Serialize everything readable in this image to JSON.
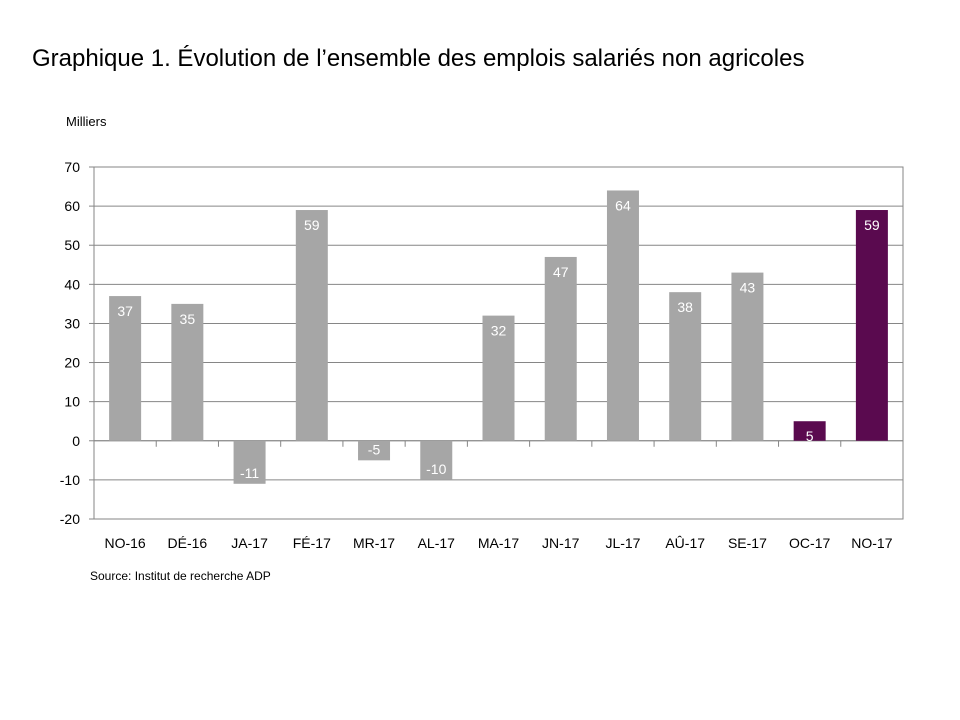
{
  "chart_data": {
    "type": "bar",
    "title": "Graphique 1. Évolution de l’ensemble des emplois salariés non agricoles",
    "ylabel": "Milliers",
    "xlabel": "",
    "source": "Source: Institut de recherche ADP",
    "categories": [
      "NO-16",
      "DÉ-16",
      "JA-17",
      "FÉ-17",
      "MR-17",
      "AL-17",
      "MA-17",
      "JN-17",
      "JL-17",
      "AÛ-17",
      "SE-17",
      "OC-17",
      "NO-17"
    ],
    "values": [
      37,
      35,
      -11,
      59,
      -5,
      -10,
      32,
      47,
      64,
      38,
      43,
      5,
      59
    ],
    "value_labels": [
      "37",
      "35",
      "-11",
      "59",
      "-5",
      "-10",
      "32",
      "47",
      "64",
      "38",
      "43",
      "5",
      "59"
    ],
    "highlighted": [
      false,
      false,
      false,
      false,
      false,
      false,
      false,
      false,
      false,
      false,
      false,
      true,
      true
    ],
    "ylim": [
      -20,
      70
    ],
    "yticks": [
      70,
      60,
      50,
      40,
      30,
      20,
      10,
      0,
      -10,
      -20
    ],
    "grid": true,
    "legend": "none",
    "colors": {
      "bar": "#a6a6a6",
      "highlight": "#5a0a4f",
      "grid": "#868686",
      "label": "#ffffff"
    }
  }
}
